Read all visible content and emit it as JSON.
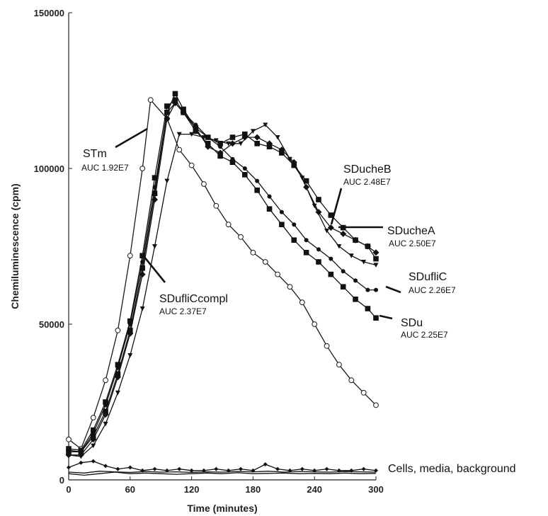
{
  "chart_data": {
    "type": "line",
    "title": "",
    "xlabel": "Time (minutes)",
    "ylabel": "Chemiluminescence (cpm)",
    "xlim": [
      0,
      300
    ],
    "ylim": [
      0,
      150000
    ],
    "xticks": [
      "0",
      "60",
      "120",
      "180",
      "240",
      "300"
    ],
    "yticks": [
      "0",
      "50000",
      "100000",
      "150000"
    ],
    "grid": false,
    "legend": "none",
    "series": [
      {
        "name": "STm",
        "auc": "AUC 1.92E7",
        "marker": "open-circle",
        "color": "#1a1a1a",
        "x": [
          0,
          12,
          24,
          36,
          48,
          60,
          72,
          80,
          96,
          108,
          120,
          132,
          144,
          156,
          168,
          180,
          192,
          204,
          216,
          228,
          240,
          252,
          264,
          276,
          288,
          300
        ],
        "y": [
          13000,
          10000,
          20000,
          32000,
          48000,
          72000,
          100000,
          122000,
          116000,
          106000,
          101000,
          95000,
          88000,
          82000,
          78000,
          73000,
          70000,
          66000,
          62000,
          57000,
          50000,
          43000,
          37000,
          32000,
          28000,
          24000
        ]
      },
      {
        "name": "SDucheB",
        "auc": "AUC 2.48E7",
        "marker": "filled-square",
        "color": "#111111",
        "x": [
          0,
          12,
          24,
          36,
          48,
          60,
          72,
          84,
          96,
          104,
          112,
          124,
          136,
          148,
          160,
          172,
          184,
          196,
          208,
          220,
          232,
          244,
          256,
          268,
          280,
          292,
          300
        ],
        "y": [
          9000,
          9000,
          14000,
          22000,
          34000,
          48000,
          68000,
          92000,
          118000,
          124000,
          119000,
          113000,
          110000,
          108000,
          110000,
          111000,
          108000,
          107000,
          105000,
          101000,
          96000,
          90000,
          85000,
          81000,
          77000,
          75000,
          71000
        ]
      },
      {
        "name": "SDucheA",
        "auc": "AUC 2.50E7",
        "marker": "filled-diamond",
        "color": "#111111",
        "x": [
          0,
          12,
          24,
          36,
          48,
          60,
          72,
          84,
          96,
          104,
          112,
          124,
          136,
          148,
          160,
          172,
          184,
          196,
          208,
          220,
          232,
          244,
          256,
          268,
          280,
          292,
          300
        ],
        "y": [
          8000,
          8000,
          13000,
          21000,
          33000,
          47000,
          66000,
          90000,
          116000,
          121000,
          118000,
          113000,
          107000,
          105000,
          108000,
          110000,
          110000,
          108000,
          106000,
          102000,
          94000,
          86000,
          81000,
          79000,
          77000,
          75000,
          73000
        ]
      },
      {
        "name": "SDufliC",
        "auc": "AUC 2.26E7",
        "marker": "filled-circle",
        "color": "#111111",
        "x": [
          0,
          12,
          24,
          36,
          48,
          60,
          72,
          84,
          96,
          104,
          112,
          124,
          136,
          148,
          160,
          172,
          184,
          196,
          208,
          220,
          232,
          244,
          256,
          268,
          280,
          292,
          300
        ],
        "y": [
          9500,
          9000,
          15000,
          24000,
          36000,
          50000,
          70000,
          94000,
          118000,
          121000,
          118000,
          114000,
          110000,
          107000,
          103000,
          100000,
          96000,
          91000,
          86000,
          82000,
          77000,
          74000,
          71000,
          67000,
          64000,
          61000,
          61000
        ]
      },
      {
        "name": "SDu",
        "auc": "AUC 2.25E7",
        "marker": "filled-square",
        "color": "#111111",
        "x": [
          0,
          12,
          24,
          36,
          48,
          60,
          72,
          84,
          96,
          104,
          112,
          124,
          136,
          148,
          160,
          172,
          184,
          196,
          208,
          220,
          232,
          244,
          256,
          268,
          280,
          292,
          300
        ],
        "y": [
          10000,
          9500,
          16000,
          25000,
          37000,
          51000,
          72000,
          97000,
          120000,
          122000,
          118000,
          112000,
          108000,
          104000,
          102000,
          98000,
          93000,
          87000,
          82000,
          77000,
          73000,
          70000,
          66000,
          62000,
          58000,
          55000,
          52000
        ]
      },
      {
        "name": "SDufliCcompl",
        "auc": "AUC 2.37E7",
        "marker": "filled-triangle-down",
        "color": "#111111",
        "x": [
          0,
          12,
          24,
          36,
          48,
          60,
          72,
          84,
          96,
          108,
          120,
          132,
          144,
          156,
          168,
          180,
          192,
          204,
          216,
          228,
          240,
          252,
          264,
          276,
          288,
          300
        ],
        "y": [
          8000,
          7500,
          11000,
          18000,
          28000,
          40000,
          55000,
          75000,
          96000,
          111000,
          111000,
          110000,
          109000,
          108000,
          108000,
          112000,
          114000,
          110000,
          103000,
          97000,
          88000,
          80000,
          75000,
          72000,
          70000,
          69000
        ]
      },
      {
        "name": "Cells, media, background",
        "auc": "",
        "marker": "small-diamond",
        "color": "#111111",
        "x": [
          0,
          12,
          24,
          36,
          48,
          60,
          72,
          84,
          96,
          108,
          120,
          132,
          144,
          156,
          168,
          180,
          192,
          204,
          216,
          228,
          240,
          252,
          264,
          276,
          288,
          300
        ],
        "y": [
          4000,
          5500,
          6000,
          4500,
          3500,
          4000,
          3000,
          3500,
          3000,
          3500,
          3000,
          3000,
          3500,
          3000,
          3500,
          3000,
          5000,
          3500,
          3000,
          3500,
          3000,
          3500,
          3000,
          3000,
          3500,
          3000
        ]
      },
      {
        "name": "",
        "auc": "",
        "marker": "line",
        "color": "#111111",
        "x": [
          0,
          15,
          30,
          45,
          60,
          75,
          90,
          105,
          120,
          135,
          150,
          165,
          180,
          195,
          210,
          225,
          240,
          255,
          270,
          285,
          300
        ],
        "y": [
          2000,
          1500,
          2000,
          2500,
          2000,
          2200,
          2000,
          1800,
          2000,
          2200,
          2000,
          2300,
          2000,
          2100,
          2200,
          2000,
          2100,
          2000,
          2200,
          2000,
          2100
        ]
      },
      {
        "name": "",
        "auc": "",
        "marker": "line",
        "color": "#111111",
        "x": [
          0,
          15,
          30,
          45,
          60,
          75,
          90,
          105,
          120,
          135,
          150,
          165,
          180,
          195,
          210,
          225,
          240,
          255,
          270,
          285,
          300
        ],
        "y": [
          2500,
          2200,
          2800,
          2600,
          2400,
          2700,
          2500,
          2600,
          2400,
          2600,
          2500,
          2700,
          2600,
          2800,
          2500,
          2700,
          2600,
          2500,
          2700,
          2600,
          2500
        ]
      }
    ],
    "annotations": [
      {
        "id": "stm",
        "text": "STm",
        "auc": "AUC 1.92E7"
      },
      {
        "id": "sducheb",
        "text": "SDucheB",
        "auc": "AUC 2.48E7"
      },
      {
        "id": "sduchea",
        "text": "SDucheA",
        "auc": "AUC 2.50E7"
      },
      {
        "id": "sduflic",
        "text": "SDufliC",
        "auc": "AUC 2.26E7"
      },
      {
        "id": "sdu",
        "text": "SDu",
        "auc": "AUC 2.25E7"
      },
      {
        "id": "sduflicc",
        "text": "SDufliCcompl",
        "auc": "AUC 2.37E7"
      },
      {
        "id": "cells",
        "text": "Cells, media, background",
        "auc": ""
      }
    ]
  }
}
